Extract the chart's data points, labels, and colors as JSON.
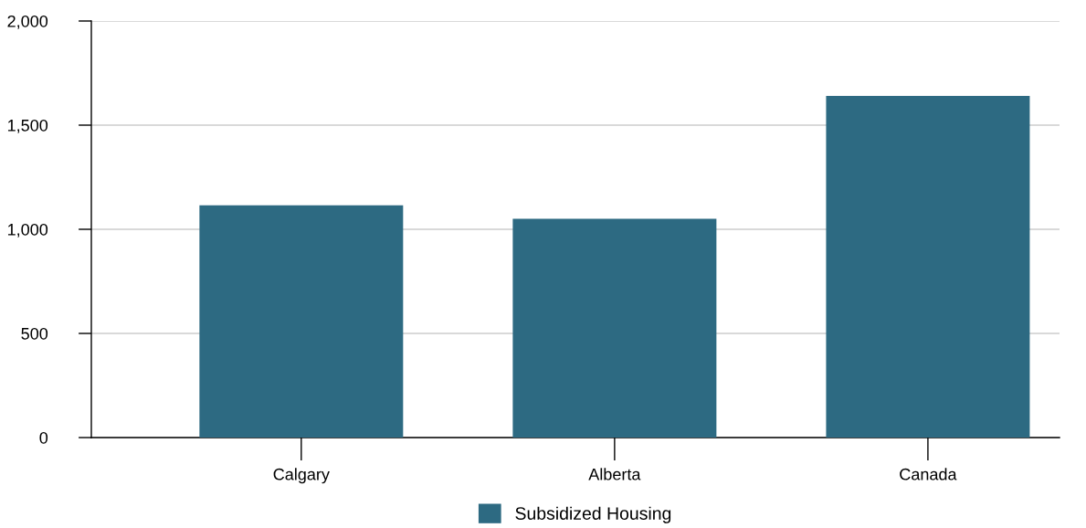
{
  "chart_data": {
    "type": "bar",
    "categories": [
      "Calgary",
      "Alberta",
      "Canada"
    ],
    "series": [
      {
        "name": "Subsidized Housing",
        "color": "#2d6a82",
        "values": [
          1115,
          1050,
          1640
        ]
      }
    ],
    "ylim": [
      0,
      2000
    ],
    "yticks": [
      {
        "value": 0,
        "label": "0"
      },
      {
        "value": 500,
        "label": "500"
      },
      {
        "value": 1000,
        "label": "1,000"
      },
      {
        "value": 1500,
        "label": "1,500"
      },
      {
        "value": 2000,
        "label": "2,000"
      }
    ],
    "grid": "y",
    "legend": "bottom"
  }
}
